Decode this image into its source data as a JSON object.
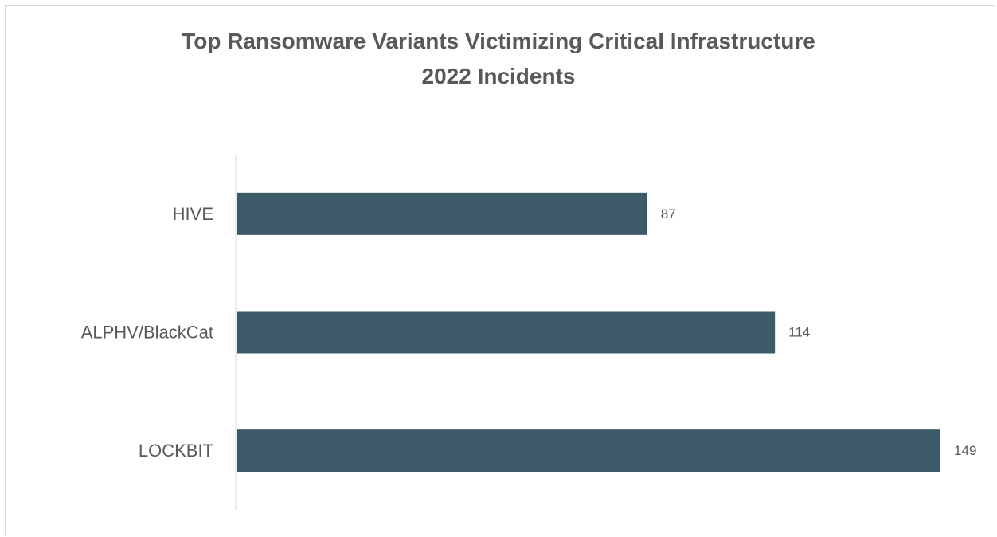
{
  "chart_data": {
    "type": "bar",
    "orientation": "horizontal",
    "title": [
      "Top Ransomware Variants Victimizing Critical Infrastructure",
      "2022 Incidents"
    ],
    "categories": [
      "HIVE",
      "ALPHV/BlackCat",
      "LOCKBIT"
    ],
    "values": [
      87,
      114,
      149
    ],
    "xlim": [
      0,
      150
    ],
    "grid": false,
    "legend": "none",
    "colors": {
      "bar": "#3c5a68",
      "text": "#595959",
      "axis": "#d9d9d9"
    }
  }
}
